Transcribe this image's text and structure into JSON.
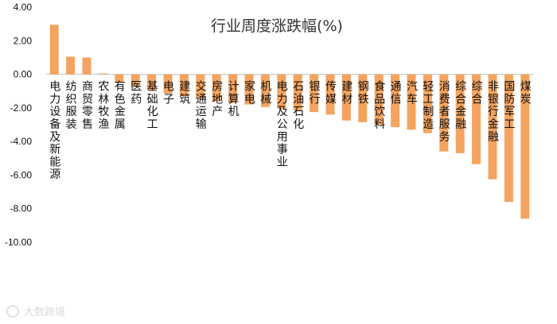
{
  "chart_data": {
    "type": "bar",
    "title": "行业周度涨跌幅(%)",
    "xlabel": "",
    "ylabel": "",
    "ylim": [
      -10,
      4
    ],
    "yticks": [
      "4.00",
      "2.00",
      "0.00",
      "-2.00",
      "-4.00",
      "-6.00",
      "-8.00",
      "-10.00"
    ],
    "bar_color": "#f4a460",
    "categories": [
      "电力设备及新能源",
      "纺织服装",
      "商贸零售",
      "农林牧渔",
      "有色金属",
      "医药",
      "基础化工",
      "电子",
      "建筑",
      "交通运输",
      "房地产",
      "计算机",
      "家电",
      "机械",
      "电力及公用事业",
      "石油石化",
      "银行",
      "传媒",
      "建材",
      "钢铁",
      "食品饮料",
      "通信",
      "汽车",
      "轻工制造",
      "消费者服务",
      "综合金融",
      "综合",
      "非银行金融",
      "国防军工",
      "煤炭"
    ],
    "values": [
      2.95,
      1.05,
      1.0,
      0.05,
      -0.5,
      -0.75,
      -0.95,
      -1.15,
      -1.3,
      -1.45,
      -1.6,
      -1.7,
      -1.8,
      -1.95,
      -2.05,
      -2.15,
      -2.25,
      -2.4,
      -2.75,
      -2.85,
      -3.0,
      -3.15,
      -3.3,
      -3.5,
      -4.6,
      -4.7,
      -5.35,
      -6.25,
      -7.6,
      -8.6
    ]
  },
  "watermark": "大数跨境"
}
